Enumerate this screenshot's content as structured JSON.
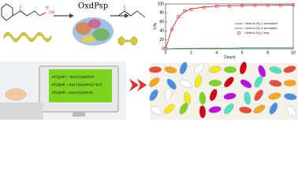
{
  "enzyme_label": "OxdPsp",
  "equations": [
    "dY(1)/dt = -Ka1Y(1)xEKsh",
    "dY(2)/dt = Ka1Y(1)xEKs(1+bY)",
    "dY(3)/dt = Ka2Y(1)xEKsh"
  ],
  "chart_data": {
    "type": "line",
    "x_label": "Time/h",
    "y_label": "Y/%",
    "x": [
      0,
      0.5,
      1,
      1.5,
      2,
      3,
      4,
      5,
      6,
      7,
      8,
      9,
      10
    ],
    "series": [
      {
        "name": "Yield of (R)-2,simulated",
        "color": "#e0302a",
        "style": "line",
        "values": [
          0,
          45,
          70,
          83,
          89,
          93,
          95,
          96,
          96.5,
          97,
          97,
          97.5,
          97.5
        ]
      },
      {
        "name": "Yield of (S)-2,simulated",
        "color": "#3aa040",
        "style": "line",
        "values": [
          0,
          0.5,
          1,
          1,
          1,
          1.5,
          1.5,
          1.5,
          2,
          2,
          2,
          2,
          2
        ]
      },
      {
        "name": "Yield of (R)-2,exp",
        "color": "#e0302a",
        "style": "marker",
        "values": [
          0,
          43,
          72,
          85,
          88,
          92,
          95,
          95,
          96,
          97,
          97,
          97,
          98
        ]
      }
    ],
    "xlim": [
      0,
      10
    ],
    "xticks": [
      0,
      2,
      4,
      6,
      8,
      10
    ],
    "ylim": [
      0,
      100
    ],
    "yticks": [
      0,
      20,
      40,
      60,
      80,
      100
    ]
  }
}
